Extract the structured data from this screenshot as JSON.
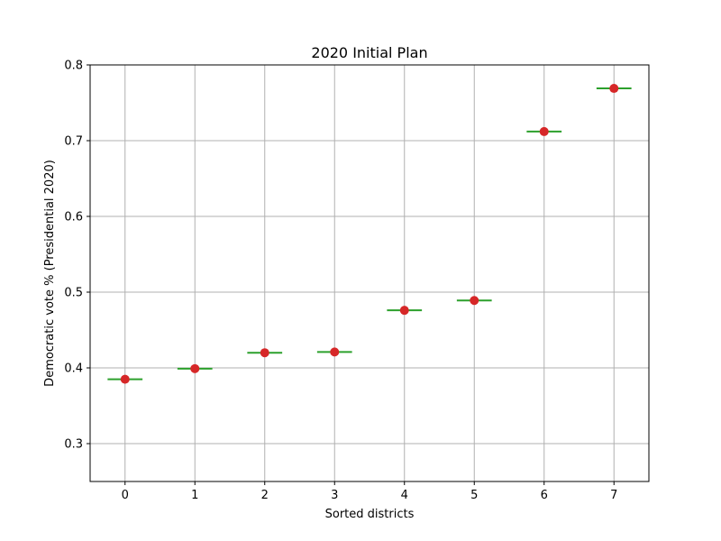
{
  "chart_data": {
    "type": "scatter",
    "title": "2020 Initial Plan",
    "xlabel": "Sorted districts",
    "ylabel": "Democratic vote % (Presidential 2020)",
    "x": [
      0,
      1,
      2,
      3,
      4,
      5,
      6,
      7
    ],
    "x_tick_labels": [
      "0",
      "1",
      "2",
      "3",
      "4",
      "5",
      "6",
      "7"
    ],
    "values": [
      0.385,
      0.399,
      0.42,
      0.421,
      0.476,
      0.489,
      0.712,
      0.769
    ],
    "y_ticks": [
      0.3,
      0.4,
      0.5,
      0.6,
      0.7,
      0.8
    ],
    "y_tick_labels": [
      "0.3",
      "0.4",
      "0.5",
      "0.6",
      "0.7",
      "0.8"
    ],
    "xlim": [
      -0.5,
      7.5
    ],
    "ylim": [
      0.25,
      0.8
    ],
    "grid": true,
    "colors": {
      "point": "#d62728",
      "marker_line": "#2ca02c",
      "grid": "#b0b0b0",
      "axis": "#000000"
    }
  }
}
